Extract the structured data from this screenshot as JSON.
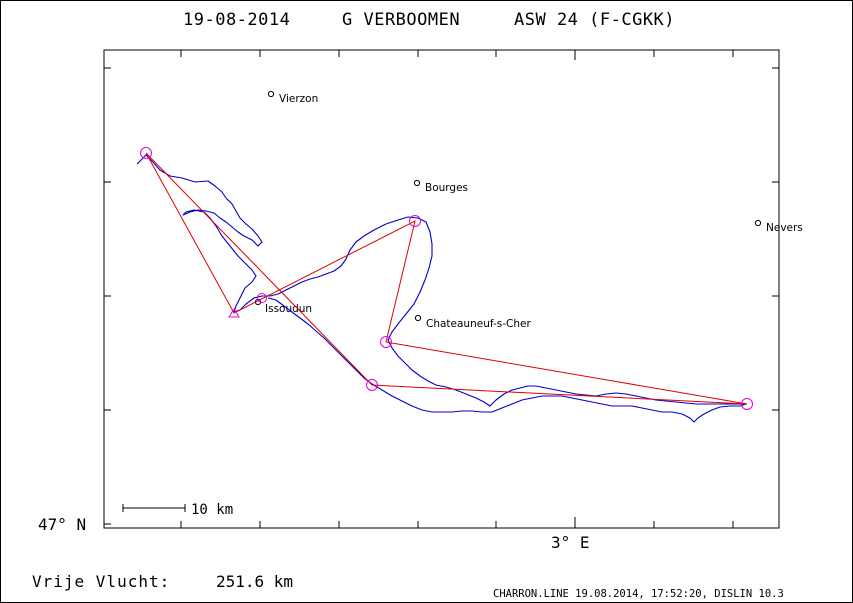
{
  "header": {
    "date": "19-08-2014",
    "pilot": "G VERBOOMEN",
    "glider": "ASW 24 (F-CGKK)"
  },
  "axes": {
    "lat_label": "47° N",
    "lon_label": "3° E"
  },
  "scale_bar": {
    "label": "10 km"
  },
  "towns": [
    {
      "name": "Vierzon"
    },
    {
      "name": "Bourges"
    },
    {
      "name": "Nevers"
    },
    {
      "name": "Issoudun"
    },
    {
      "name": "Chateauneuf-s-Cher"
    }
  ],
  "footer": {
    "distance_label": "Vrije Vlucht:",
    "distance_value": "251.6 km",
    "credit": "CHARRON.LINE 19.08.2014, 17:52:20, DISLIN 10.3"
  },
  "colors": {
    "track": "#0000cc",
    "task": "#e00000",
    "turnpoint": "#e000e0"
  }
}
